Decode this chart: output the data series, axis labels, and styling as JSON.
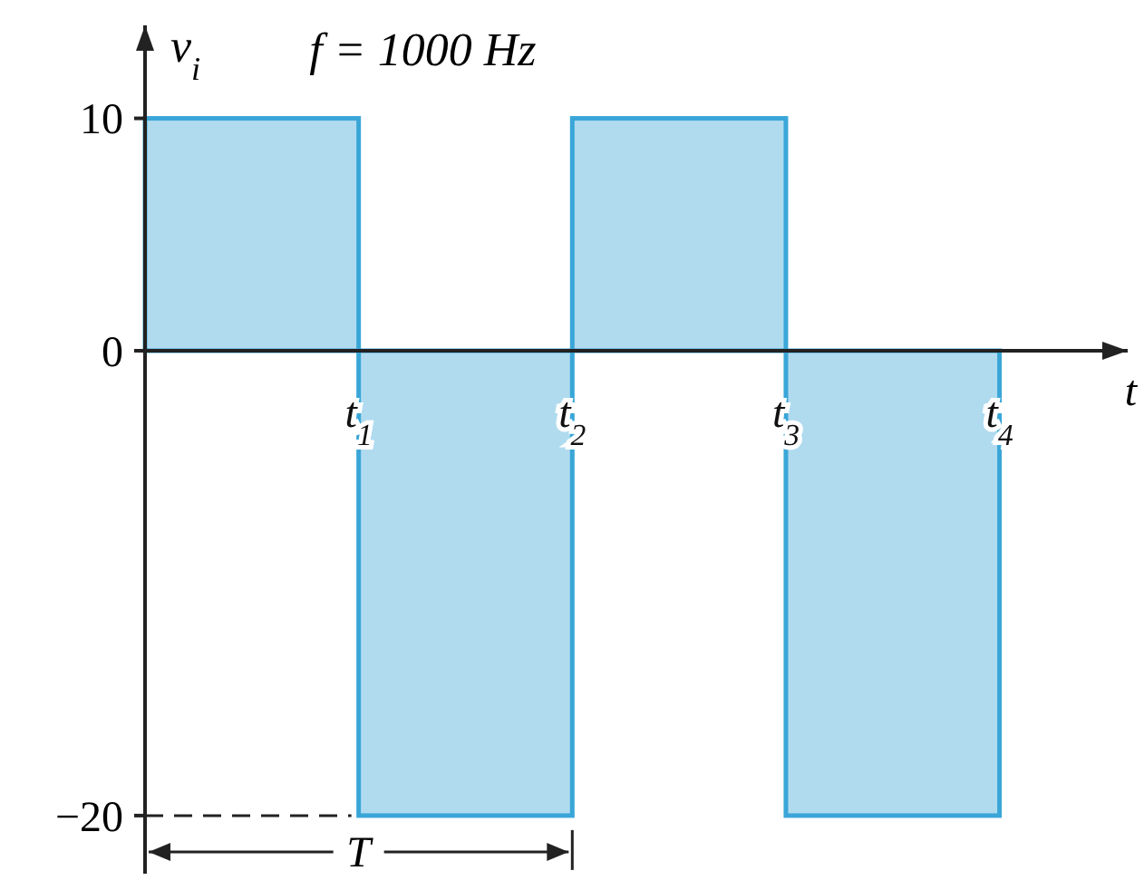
{
  "chart_data": {
    "type": "bar",
    "xlabel": "t",
    "ylabel": "v$_{i}$",
    "annotations": [
      "f = 1000 Hz",
      "T"
    ],
    "series": [
      {
        "color": "#3aa6d8",
        "x": [
          0.5,
          1.5,
          2.5,
          3.5
        ],
        "values": [
          10,
          -20,
          10,
          -20
        ]
      }
    ],
    "xlim": [
      0,
      4.6
    ],
    "ylim": [
      -22.5,
      14
    ],
    "xticks": [
      {
        "value": 1,
        "label": "t$_{1}$"
      },
      {
        "value": 2,
        "label": "t$_{2}$"
      },
      {
        "value": 3,
        "label": "t$_{3}$"
      },
      {
        "value": 4,
        "label": "t$_{4}$"
      }
    ],
    "yticks": [
      10,
      0,
      -20
    ],
    "grid": false
  }
}
